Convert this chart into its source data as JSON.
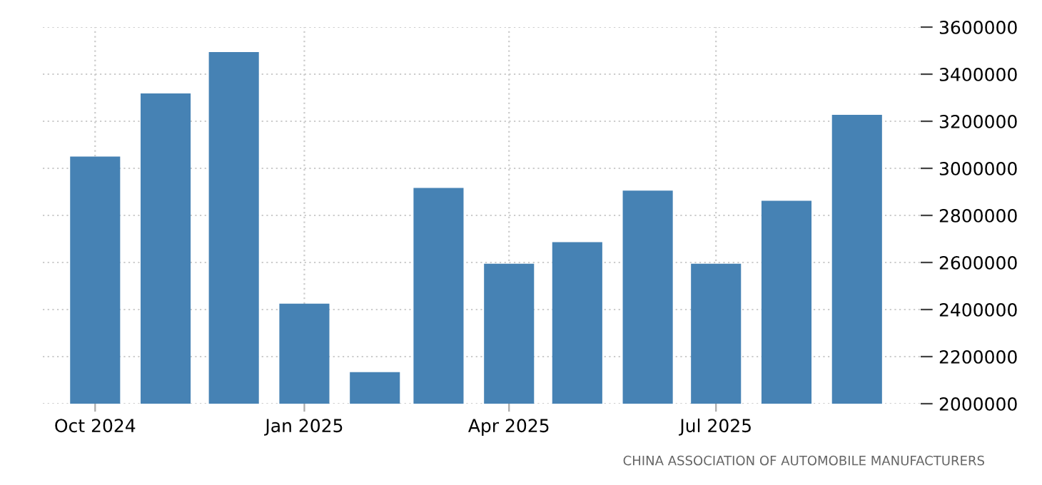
{
  "chart_data": {
    "type": "bar",
    "x": [
      "2024-10",
      "2024-11",
      "2024-12",
      "2025-01",
      "2025-02",
      "2025-03",
      "2025-04",
      "2025-05",
      "2025-06",
      "2025-07",
      "2025-08",
      "2025-09"
    ],
    "values": [
      3050000,
      3318000,
      3494000,
      2425000,
      2134000,
      2917000,
      2595000,
      2686000,
      2905000,
      2595000,
      2862000,
      3227000
    ],
    "color": "#4682b4",
    "xlim": [
      "2024-09-08",
      "2025-09-29"
    ],
    "xticks": [
      {
        "value": "2024-10",
        "label": "Oct 2024"
      },
      {
        "value": "2025-01",
        "label": "Jan 2025"
      },
      {
        "value": "2025-04",
        "label": "Apr 2025"
      },
      {
        "value": "2025-07",
        "label": "Jul 2025"
      }
    ],
    "ylim": [
      2000000,
      3600000
    ],
    "yticks": [
      2000000,
      2200000,
      2400000,
      2600000,
      2800000,
      3000000,
      3200000,
      3400000,
      3600000
    ],
    "grid": true,
    "annotations": [
      "CHINA ASSOCIATION OF AUTOMOBILE MANUFACTURERS"
    ]
  }
}
